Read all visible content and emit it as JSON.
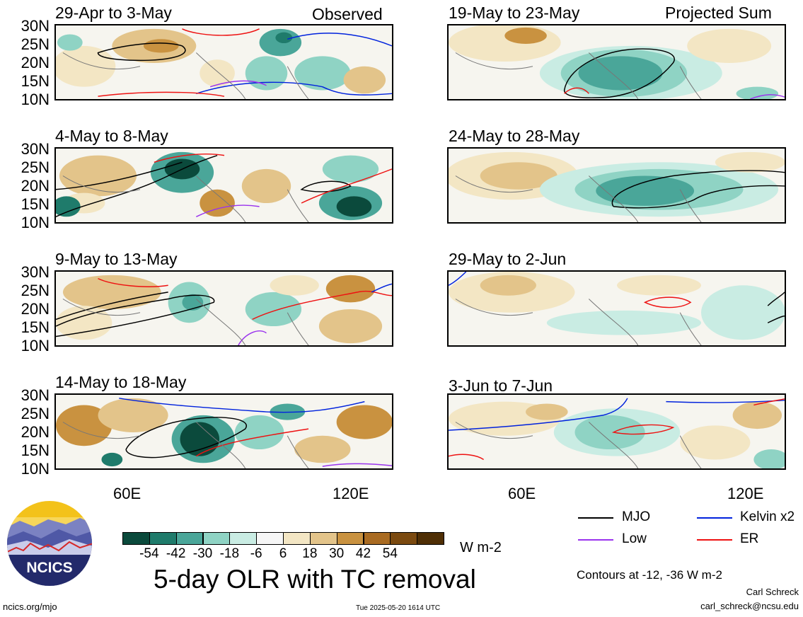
{
  "panels": {
    "left": [
      {
        "title": "29-Apr to 3-May",
        "tag": "Observed"
      },
      {
        "title": "4-May to 8-May",
        "tag": ""
      },
      {
        "title": "9-May to 13-May",
        "tag": ""
      },
      {
        "title": "14-May to 18-May",
        "tag": ""
      }
    ],
    "right": [
      {
        "title": "19-May to 23-May",
        "tag": "Projected Sum"
      },
      {
        "title": "24-May to 28-May",
        "tag": ""
      },
      {
        "title": "29-May to 2-Jun",
        "tag": ""
      },
      {
        "title": "3-Jun to 7-Jun",
        "tag": ""
      }
    ]
  },
  "lat_labels": [
    "30N",
    "25N",
    "20N",
    "15N",
    "10N"
  ],
  "lon_labels": [
    "60E",
    "120E"
  ],
  "colorbar": {
    "colors": [
      "#0b4a3c",
      "#1f7b6b",
      "#4aa699",
      "#8fd3c4",
      "#c9ece3",
      "#f6f6f6",
      "#f3e6c4",
      "#e3c48a",
      "#c99240",
      "#a96b22",
      "#7b4a10",
      "#4f2f05"
    ],
    "ticks": [
      "-54",
      "-42",
      "-30",
      "-18",
      "-6",
      "6",
      "18",
      "30",
      "42",
      "54"
    ],
    "unit": "W m-2"
  },
  "legend": {
    "mjo": {
      "label": "MJO",
      "color": "#000000"
    },
    "kelvin": {
      "label": "Kelvin x2",
      "color": "#0022dd"
    },
    "low": {
      "label": "Low",
      "color": "#9a33ee"
    },
    "er": {
      "label": "ER",
      "color": "#ee1111"
    }
  },
  "contours_note": "Contours at -12, -36 W m-2",
  "main_title": "5-day OLR with TC removal",
  "logo_text": "NCICS",
  "url": "ncics.org/mjo",
  "timestamp": "Tue 2025-05-20 1614 UTC",
  "author": "Carl Schreck",
  "email": "carl_schreck@ncsu.edu"
}
